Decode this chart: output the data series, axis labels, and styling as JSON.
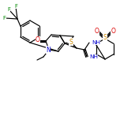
{
  "bg_color": "#ffffff",
  "bond_color": "#000000",
  "atom_colors": {
    "N": "#0000cc",
    "O": "#dd0000",
    "S": "#cc8800",
    "F": "#008800",
    "C": "#000000"
  },
  "figsize": [
    1.52,
    1.52
  ],
  "dpi": 100,
  "lw": 0.85
}
